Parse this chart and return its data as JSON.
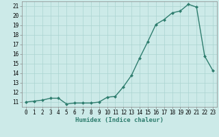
{
  "x": [
    0,
    1,
    2,
    3,
    4,
    5,
    6,
    7,
    8,
    9,
    10,
    11,
    12,
    13,
    14,
    15,
    16,
    17,
    18,
    19,
    20,
    21,
    22,
    23
  ],
  "y": [
    11.0,
    11.1,
    11.2,
    11.4,
    11.4,
    10.8,
    10.9,
    10.9,
    10.9,
    11.0,
    11.5,
    11.6,
    12.6,
    13.8,
    15.6,
    17.3,
    19.1,
    19.6,
    20.3,
    20.5,
    21.2,
    20.9,
    15.8,
    14.3
  ],
  "xlabel": "Humidex (Indice chaleur)",
  "xlim": [
    -0.5,
    23.5
  ],
  "ylim": [
    10.5,
    21.5
  ],
  "yticks": [
    11,
    12,
    13,
    14,
    15,
    16,
    17,
    18,
    19,
    20,
    21
  ],
  "xticks": [
    0,
    1,
    2,
    3,
    4,
    5,
    6,
    7,
    8,
    9,
    10,
    11,
    12,
    13,
    14,
    15,
    16,
    17,
    18,
    19,
    20,
    21,
    22,
    23
  ],
  "line_color": "#2e7d6e",
  "marker": "D",
  "marker_size": 2.0,
  "line_width": 1.0,
  "bg_color": "#cceae8",
  "grid_color": "#aad4d0",
  "tick_label_fontsize": 5.5,
  "xlabel_fontsize": 6.5
}
